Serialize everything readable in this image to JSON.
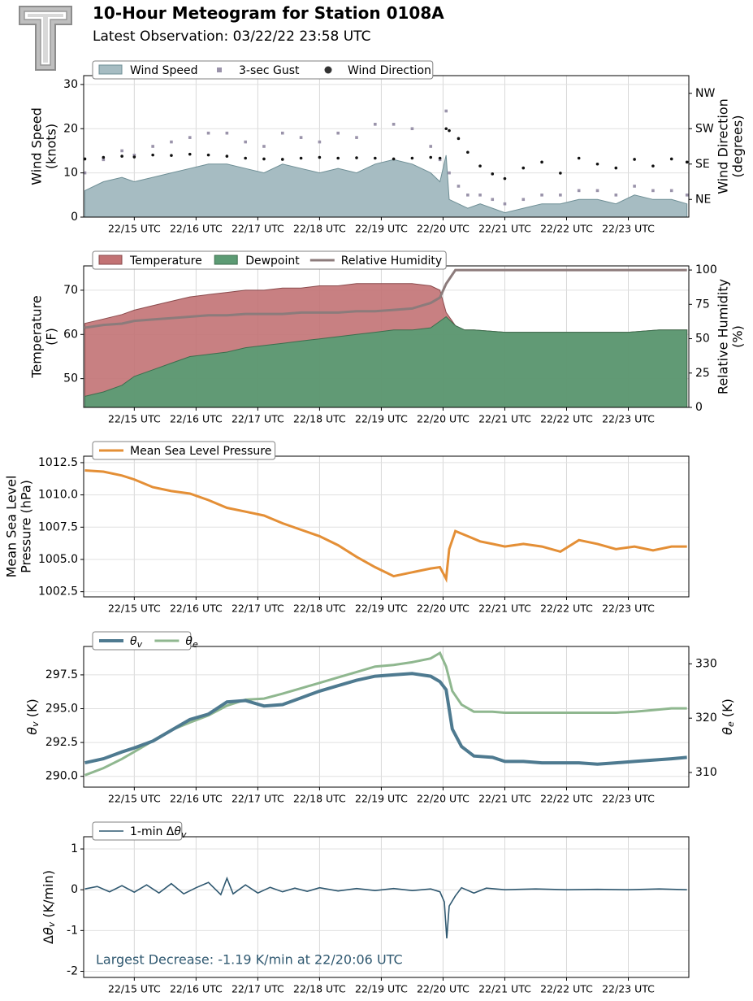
{
  "header": {
    "title": "10-Hour Meteogram for Station 0108A",
    "subtitle": "Latest Observation: 03/22/22 23:58 UTC"
  },
  "colors": {
    "wind_speed": "#a6bcc2",
    "wind_speed_line": "#6f8f96",
    "gust": "#9a93aa",
    "wind_dir": "#111111",
    "temperature": "#c27274",
    "temperature_line": "#8a4a4c",
    "dewpoint": "#5c9b74",
    "dewpoint_line": "#3c6e4e",
    "rh": "#8c7b7b",
    "mslp": "#e48f36",
    "theta_v": "#4e7a90",
    "theta_e": "#8fb78f",
    "dtheta": "#2f5870",
    "annotation": "#2f5870"
  },
  "time_axis": {
    "tick_labels": [
      "22/15 UTC",
      "22/16 UTC",
      "22/17 UTC",
      "22/18 UTC",
      "22/19 UTC",
      "22/20 UTC",
      "22/21 UTC",
      "22/22 UTC",
      "22/23 UTC"
    ],
    "tick_hours": [
      15,
      16,
      17,
      18,
      19,
      20,
      21,
      22,
      23
    ],
    "xlim_hours": [
      14.18,
      23.98
    ]
  },
  "chart_data": [
    {
      "id": "wind",
      "type": "area",
      "ylabel": "Wind Speed\n(knots)",
      "ylabel2": "Wind Direction\n(degrees)",
      "ylim": [
        0,
        32
      ],
      "yticks": [
        0,
        10,
        20,
        30
      ],
      "y2_ticks": [
        {
          "label": "NE",
          "deg": 45
        },
        {
          "label": "SE",
          "deg": 135
        },
        {
          "label": "SW",
          "deg": 225
        },
        {
          "label": "NW",
          "deg": 315
        }
      ],
      "y2lim": [
        0,
        360
      ],
      "legend": [
        "Wind Speed",
        "3-sec Gust",
        "Wind Direction"
      ],
      "legend_position": "top-left",
      "grid": true,
      "x": [
        14.2,
        14.5,
        14.8,
        15.0,
        15.3,
        15.6,
        15.9,
        16.2,
        16.5,
        16.8,
        17.1,
        17.4,
        17.7,
        18.0,
        18.3,
        18.6,
        18.9,
        19.2,
        19.5,
        19.8,
        19.95,
        20.05,
        20.1,
        20.25,
        20.4,
        20.6,
        20.8,
        21.0,
        21.3,
        21.6,
        21.9,
        22.2,
        22.5,
        22.8,
        23.1,
        23.4,
        23.7,
        23.95
      ],
      "series": [
        {
          "name": "Wind Speed",
          "values": [
            6,
            8,
            9,
            8,
            9,
            10,
            11,
            12,
            12,
            11,
            10,
            12,
            11,
            10,
            11,
            10,
            12,
            13,
            12,
            10,
            8,
            14,
            4,
            3,
            2,
            3,
            2,
            1,
            2,
            3,
            3,
            4,
            4,
            3,
            5,
            4,
            4,
            3
          ]
        },
        {
          "name": "3-sec Gust",
          "values": [
            10,
            13,
            15,
            14,
            16,
            17,
            18,
            19,
            19,
            17,
            16,
            19,
            18,
            17,
            19,
            18,
            21,
            21,
            20,
            16,
            13,
            24,
            10,
            7,
            5,
            5,
            4,
            3,
            4,
            5,
            5,
            6,
            6,
            5,
            7,
            6,
            6,
            5
          ]
        },
        {
          "name": "Wind Direction",
          "values": [
            148,
            152,
            155,
            153,
            158,
            157,
            160,
            158,
            155,
            150,
            148,
            147,
            150,
            152,
            150,
            151,
            150,
            148,
            150,
            152,
            150,
            225,
            220,
            200,
            165,
            130,
            110,
            98,
            125,
            140,
            112,
            150,
            135,
            125,
            147,
            130,
            148,
            140
          ]
        }
      ]
    },
    {
      "id": "temp",
      "type": "area",
      "ylabel": "Temperature\n(F)",
      "ylabel2": "Relative Humidity\n(%)",
      "ylim": [
        43.5,
        75.5
      ],
      "yticks": [
        50,
        60,
        70
      ],
      "y2lim": [
        0,
        103
      ],
      "y2ticks": [
        0,
        25,
        50,
        75,
        100
      ],
      "legend": [
        "Temperature",
        "Dewpoint",
        "Relative Humidity"
      ],
      "legend_position": "top-left",
      "grid": true,
      "x": [
        14.2,
        14.5,
        14.8,
        15.0,
        15.3,
        15.6,
        15.9,
        16.2,
        16.5,
        16.8,
        17.1,
        17.4,
        17.7,
        18.0,
        18.3,
        18.6,
        18.9,
        19.2,
        19.5,
        19.8,
        19.95,
        20.05,
        20.2,
        20.35,
        20.5,
        21.0,
        21.5,
        22.0,
        22.5,
        23.0,
        23.5,
        23.95
      ],
      "series": [
        {
          "name": "Temperature",
          "values": [
            62.5,
            63.5,
            64.5,
            65.5,
            66.5,
            67.5,
            68.5,
            69,
            69.5,
            70,
            70,
            70.5,
            70.5,
            71,
            71,
            71.5,
            71.5,
            71.5,
            71.5,
            71,
            70,
            65,
            62,
            61,
            61,
            60.5,
            60.5,
            60.5,
            60.5,
            60.5,
            61,
            61
          ]
        },
        {
          "name": "Dewpoint",
          "values": [
            46,
            47,
            48.5,
            50.5,
            52,
            53.5,
            55,
            55.5,
            56,
            57,
            57.5,
            58,
            58.5,
            59,
            59.5,
            60,
            60.5,
            61,
            61,
            61.5,
            63,
            64,
            62,
            61,
            61,
            60.5,
            60.5,
            60.5,
            60.5,
            60.5,
            61,
            61
          ]
        },
        {
          "name": "Relative Humidity",
          "values": [
            58,
            60,
            61,
            63,
            64,
            65,
            66,
            67,
            67,
            68,
            68,
            68,
            69,
            69,
            69,
            70,
            70,
            71,
            72,
            76,
            80,
            90,
            100,
            100,
            100,
            100,
            100,
            100,
            100,
            100,
            100,
            100
          ]
        }
      ]
    },
    {
      "id": "mslp",
      "type": "line",
      "ylabel": "Mean Sea Level\nPressure (hPa)",
      "ylim": [
        1002.1,
        1013.0
      ],
      "yticks": [
        1002.5,
        1005.0,
        1007.5,
        1010.0,
        1012.5
      ],
      "legend": [
        "Mean Sea Level Pressure"
      ],
      "legend_position": "top-left",
      "grid": true,
      "x": [
        14.2,
        14.5,
        14.8,
        15.0,
        15.3,
        15.6,
        15.9,
        16.2,
        16.5,
        16.8,
        17.1,
        17.4,
        17.7,
        18.0,
        18.3,
        18.6,
        18.9,
        19.2,
        19.5,
        19.8,
        19.95,
        20.05,
        20.1,
        20.2,
        20.4,
        20.6,
        20.8,
        21.0,
        21.3,
        21.6,
        21.9,
        22.2,
        22.5,
        22.8,
        23.1,
        23.4,
        23.7,
        23.95
      ],
      "series": [
        {
          "name": "Mean Sea Level Pressure",
          "values": [
            1011.9,
            1011.8,
            1011.5,
            1011.2,
            1010.6,
            1010.3,
            1010.1,
            1009.6,
            1009.0,
            1008.7,
            1008.4,
            1007.8,
            1007.3,
            1006.8,
            1006.1,
            1005.2,
            1004.4,
            1003.7,
            1004.0,
            1004.3,
            1004.4,
            1003.5,
            1005.8,
            1007.2,
            1006.8,
            1006.4,
            1006.2,
            1006.0,
            1006.2,
            1006.0,
            1005.6,
            1006.5,
            1006.2,
            1005.8,
            1006.0,
            1005.7,
            1006.0,
            1006.0
          ]
        }
      ]
    },
    {
      "id": "theta",
      "type": "line",
      "ylabel": "θv (K)",
      "ylabel2": "θe (K)",
      "ylim": [
        289.2,
        299.6
      ],
      "yticks": [
        290.0,
        292.5,
        295.0,
        297.5
      ],
      "y2lim": [
        307.3,
        333.2
      ],
      "y2ticks": [
        310,
        320,
        330
      ],
      "legend": [
        "θv",
        "θe"
      ],
      "legend_position": "top-left",
      "grid": true,
      "x": [
        14.2,
        14.5,
        14.8,
        15.0,
        15.3,
        15.6,
        15.9,
        16.2,
        16.5,
        16.8,
        17.1,
        17.4,
        17.7,
        18.0,
        18.3,
        18.6,
        18.9,
        19.2,
        19.5,
        19.8,
        19.95,
        20.05,
        20.15,
        20.3,
        20.5,
        20.8,
        21.0,
        21.3,
        21.6,
        21.9,
        22.2,
        22.5,
        22.8,
        23.1,
        23.4,
        23.7,
        23.95
      ],
      "series": [
        {
          "name": "θv",
          "values": [
            291.0,
            291.3,
            291.8,
            292.1,
            292.6,
            293.4,
            294.2,
            294.6,
            295.5,
            295.6,
            295.2,
            295.3,
            295.8,
            296.3,
            296.7,
            297.1,
            297.4,
            297.5,
            297.6,
            297.4,
            297.0,
            296.4,
            293.5,
            292.2,
            291.5,
            291.4,
            291.1,
            291.1,
            291.0,
            291.0,
            291.0,
            290.9,
            291.0,
            291.1,
            291.2,
            291.3,
            291.4
          ]
        },
        {
          "name": "θe",
          "values": [
            309.5,
            310.8,
            312.5,
            313.8,
            315.8,
            317.8,
            319.2,
            320.5,
            322.3,
            323.4,
            323.6,
            324.5,
            325.5,
            326.5,
            327.5,
            328.5,
            329.5,
            329.8,
            330.3,
            331.0,
            332.0,
            329.5,
            325.0,
            322.5,
            321.2,
            321.2,
            321.0,
            321.0,
            321.0,
            321.0,
            321.0,
            321.0,
            321.0,
            321.2,
            321.5,
            321.8,
            321.8
          ]
        }
      ]
    },
    {
      "id": "dtheta",
      "type": "line",
      "ylabel": "Δθv (K/min)",
      "ylim": [
        -2.15,
        1.3
      ],
      "yticks": [
        -2,
        -1,
        0,
        1
      ],
      "legend": [
        "1-min Δθv"
      ],
      "legend_position": "top-left",
      "grid": true,
      "annotation": "Largest Decrease: -1.19 K/min at 22/20:06 UTC",
      "x": [
        14.2,
        14.4,
        14.6,
        14.8,
        15.0,
        15.2,
        15.4,
        15.6,
        15.8,
        16.0,
        16.2,
        16.4,
        16.5,
        16.6,
        16.8,
        17.0,
        17.2,
        17.4,
        17.6,
        17.8,
        18.0,
        18.3,
        18.6,
        18.9,
        19.2,
        19.5,
        19.8,
        19.95,
        20.02,
        20.06,
        20.1,
        20.2,
        20.3,
        20.5,
        20.7,
        21.0,
        21.5,
        22.0,
        22.5,
        23.0,
        23.5,
        23.95
      ],
      "series": [
        {
          "name": "1-min Δθv",
          "values": [
            0.02,
            0.08,
            -0.05,
            0.1,
            -0.06,
            0.12,
            -0.08,
            0.15,
            -0.1,
            0.05,
            0.18,
            -0.12,
            0.28,
            -0.1,
            0.12,
            -0.08,
            0.06,
            -0.05,
            0.04,
            -0.04,
            0.05,
            -0.03,
            0.03,
            -0.02,
            0.03,
            -0.02,
            0.02,
            -0.05,
            -0.3,
            -1.19,
            -0.4,
            -0.15,
            0.05,
            -0.08,
            0.04,
            0.0,
            0.02,
            0.0,
            0.01,
            0.0,
            0.02,
            0.0
          ]
        }
      ]
    }
  ]
}
